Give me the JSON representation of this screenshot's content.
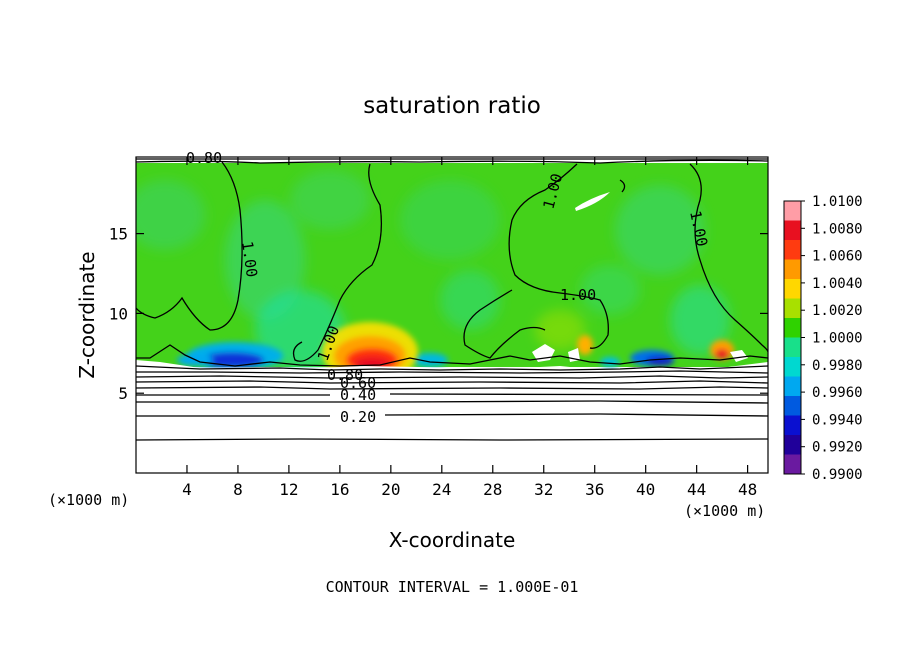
{
  "chart_data": {
    "type": "heatmap",
    "title": "saturation ratio",
    "xlabel": "X-coordinate",
    "ylabel": "Z-coordinate",
    "x_unit": "(×1000 m)",
    "xlim": [
      0,
      49.6
    ],
    "ylim": [
      0,
      19.8
    ],
    "x_ticks": [
      4,
      8,
      12,
      16,
      20,
      24,
      28,
      32,
      36,
      40,
      44,
      48
    ],
    "y_ticks": [
      5,
      10,
      15
    ],
    "footer": "CONTOUR INTERVAL = 1.000E-01",
    "colorbar": {
      "ticks": [
        "1.0100",
        "1.0080",
        "1.0060",
        "1.0040",
        "1.0020",
        "1.0000",
        "0.9980",
        "0.9960",
        "0.9940",
        "0.9920",
        "0.9900"
      ],
      "colors": [
        "#ff9da6",
        "#e81020",
        "#ff3b10",
        "#ff9a00",
        "#ffd700",
        "#a8e000",
        "#2fd200",
        "#18e08a",
        "#00d8d0",
        "#00a8f0",
        "#005ae0",
        "#0a10d0",
        "#20009a",
        "#6a1aa0"
      ]
    },
    "contour_labels": [
      {
        "text": "0.80",
        "x": 6.2,
        "z": 19.6
      },
      {
        "text": "1.00",
        "x": 8.5,
        "z": 14.0,
        "angle": 82
      },
      {
        "text": "1.00",
        "x": 15.3,
        "z": 8.1,
        "angle": -70
      },
      {
        "text": "1.00",
        "x": 33.0,
        "z": 17.5,
        "angle": -75
      },
      {
        "text": "1.00",
        "x": 34.4,
        "z": 11.1
      },
      {
        "text": "1.00",
        "x": 43.3,
        "z": 15.3,
        "angle": 78
      },
      {
        "text": "0.80",
        "x": 16.2,
        "z": 6.2
      },
      {
        "text": "0.60",
        "x": 17.2,
        "z": 5.6
      },
      {
        "text": "0.40",
        "x": 17.2,
        "z": 4.8
      },
      {
        "text": "0.20",
        "x": 17.2,
        "z": 3.4
      }
    ]
  }
}
